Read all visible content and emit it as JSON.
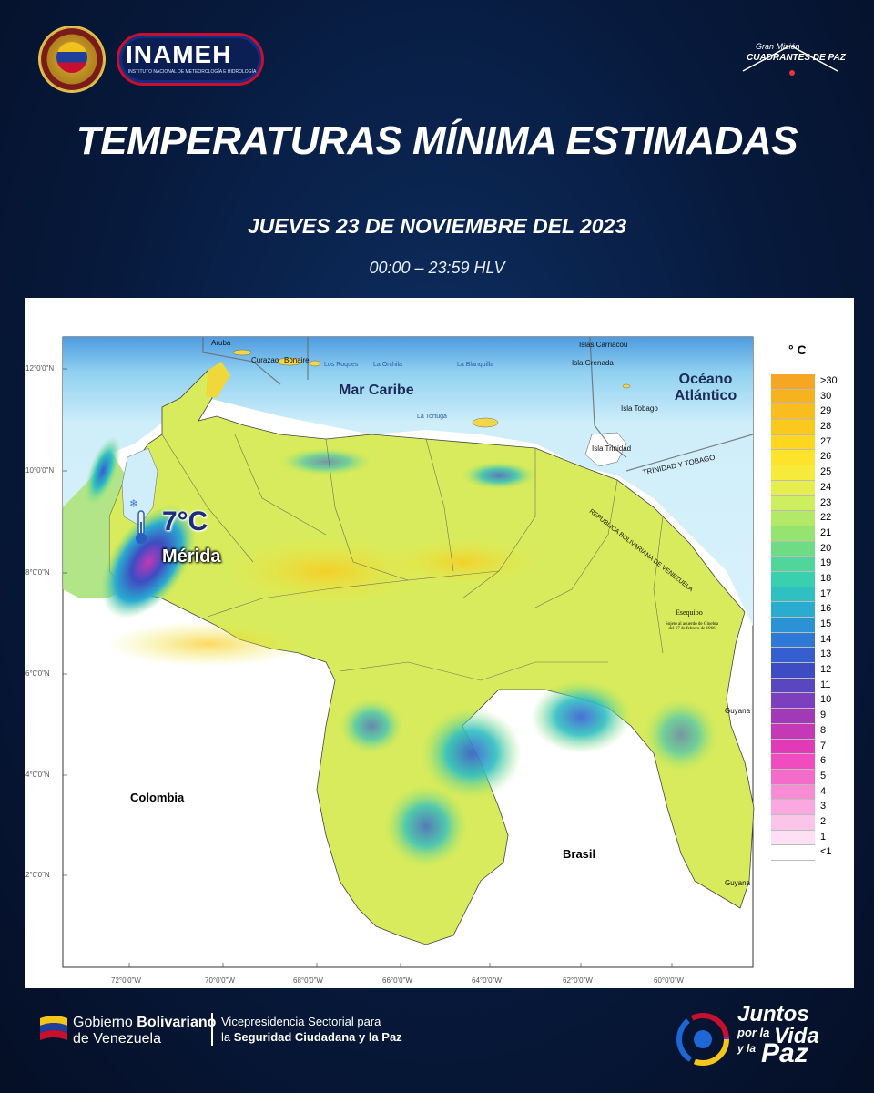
{
  "header": {
    "seal_text": "Ministerio del Poder Popular para Relaciones Interiores, Justicia y Paz",
    "logo_text": "INAMEH",
    "logo_subtitle": "INSTITUTO NACIONAL DE METEOROLOGÍA E HIDROLOGÍA",
    "right_logo_top": "Gran Misión",
    "right_logo_bottom": "CUADRANTES DE PAZ"
  },
  "title": "TEMPERATURAS MÍNIMA ESTIMADAS",
  "date": "JUEVES 23 DE NOVIEMBRE DEL 2023",
  "time_range": "00:00 – 23:59 HLV",
  "map": {
    "sea_labels": [
      "Mar Caribe",
      "Océano Atlántico"
    ],
    "country_labels": [
      "Colombia",
      "Brasil",
      "Guyana",
      "Guyana"
    ],
    "island_labels": [
      "Aruba",
      "Curazao",
      "Bonaire",
      "Los Roques",
      "La Orchila",
      "La Blanquilla",
      "La Tortuga",
      "Islas Carriacou",
      "Isla Grenada",
      "Isla Tobago",
      "Isla Trinidad"
    ],
    "border_labels": [
      "TRINIDAD Y TOBAGO",
      "REPUBLICA BOLIVARIANA DE VENEZUELA"
    ],
    "territory_label": "Esequibo",
    "territory_note": "Sujeto al acuerdo de Ginebra del 17 de febrero de 1966",
    "lat_ticks": [
      "12°0'0\"N",
      "10°0'0\"N",
      "8°0'0\"N",
      "6°0'0\"N",
      "4°0'0\"N",
      "2°0'0\"N"
    ],
    "lon_ticks": [
      "72°0'0\"W",
      "70°0'0\"W",
      "68°0'0\"W",
      "66°0'0\"W",
      "64°0'0\"W",
      "62°0'0\"W",
      "60°0'0\"W"
    ],
    "highlight": {
      "value": "7°C",
      "city": "Mérida"
    }
  },
  "legend": {
    "unit": "° C",
    "items": [
      {
        "label": ">30",
        "color": "#f5a623"
      },
      {
        "label": "30",
        "color": "#f7b21f"
      },
      {
        "label": "29",
        "color": "#f9be1e"
      },
      {
        "label": "28",
        "color": "#fbc91d"
      },
      {
        "label": "27",
        "color": "#fdd61f"
      },
      {
        "label": "26",
        "color": "#fde32b"
      },
      {
        "label": "25",
        "color": "#f6ea3a"
      },
      {
        "label": "24",
        "color": "#e6ee4e"
      },
      {
        "label": "23",
        "color": "#cdee5f"
      },
      {
        "label": "22",
        "color": "#b2ea68"
      },
      {
        "label": "21",
        "color": "#95e46f"
      },
      {
        "label": "20",
        "color": "#6fdc85"
      },
      {
        "label": "19",
        "color": "#4fd69b"
      },
      {
        "label": "18",
        "color": "#3acfae"
      },
      {
        "label": "17",
        "color": "#2fc0c1"
      },
      {
        "label": "16",
        "color": "#2aacd0"
      },
      {
        "label": "15",
        "color": "#2b92d6"
      },
      {
        "label": "14",
        "color": "#2e78d6"
      },
      {
        "label": "13",
        "color": "#355fcf"
      },
      {
        "label": "12",
        "color": "#3d4cc2"
      },
      {
        "label": "11",
        "color": "#5a47bf"
      },
      {
        "label": "10",
        "color": "#7c3fbd"
      },
      {
        "label": "9",
        "color": "#a23ab8"
      },
      {
        "label": "8",
        "color": "#c538b6"
      },
      {
        "label": "7",
        "color": "#e03ab7"
      },
      {
        "label": "6",
        "color": "#f04bbf"
      },
      {
        "label": "5",
        "color": "#f46cc9"
      },
      {
        "label": "4",
        "color": "#f78cd4"
      },
      {
        "label": "3",
        "color": "#f9a9df"
      },
      {
        "label": "2",
        "color": "#fbc5ea"
      },
      {
        "label": "1",
        "color": "#fde0f4"
      },
      {
        "label": "<1",
        "color": "#ffffff"
      }
    ]
  },
  "footer": {
    "gob_line1_a": "Gobierno ",
    "gob_line1_b": "Bolivariano",
    "gob_line2": "de Venezuela",
    "vice_line1": "Vicepresidencia Sectorial para",
    "vice_line2_a": "la ",
    "vice_line2_b": "Seguridad Ciudadana y la Paz",
    "slogan_1": "Juntos",
    "slogan_2": "por la",
    "slogan_3": "Vida",
    "slogan_4": "y la",
    "slogan_5": "Paz"
  },
  "colors": {
    "background": "#071a3d",
    "ocean": "#cfeefa",
    "land": "#d9ea62"
  }
}
